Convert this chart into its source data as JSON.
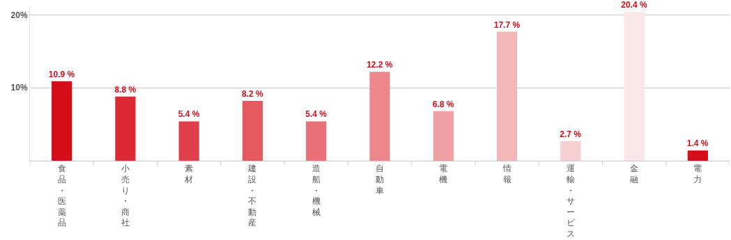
{
  "chart_data": {
    "type": "bar",
    "categories": [
      "食品・医薬品",
      "小売り・商社",
      "素材",
      "建設・不動産",
      "造船・機械",
      "自動車",
      "電機",
      "情報",
      "運輸・サービス",
      "金融",
      "電力"
    ],
    "values": [
      10.9,
      8.8,
      5.4,
      8.2,
      5.4,
      12.2,
      6.8,
      17.7,
      2.7,
      20.4,
      1.4
    ],
    "value_labels": [
      "10.9 %",
      "8.8 %",
      "5.4 %",
      "8.2 %",
      "5.4 %",
      "12.2 %",
      "6.8 %",
      "17.7 %",
      "2.7 %",
      "20.4 %",
      "1.4 %"
    ],
    "colors": [
      "#d70c19",
      "#dd2733",
      "#e0404a",
      "#e55860",
      "#e87076",
      "#ec878c",
      "#f0a0a3",
      "#f3b7b9",
      "#f6cfd2",
      "#fbe6e7",
      "#d70c19"
    ],
    "ylim": [
      0,
      21.1
    ],
    "yticks": [
      {
        "value": 10,
        "label": "10%"
      },
      {
        "value": 20,
        "label": "20%"
      }
    ],
    "grid": "y",
    "legend": false
  }
}
